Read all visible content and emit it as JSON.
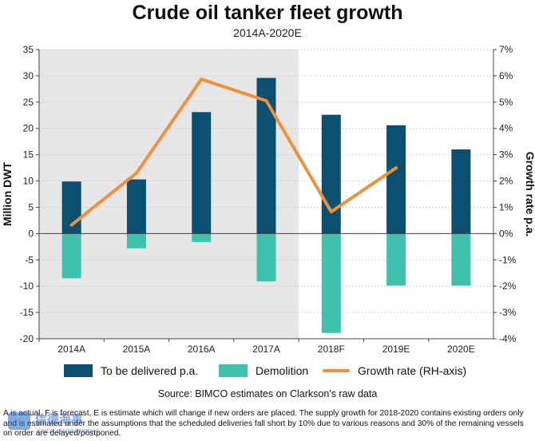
{
  "header": {
    "title": "Crude oil tanker fleet growth",
    "subtitle": "2014A-2020E"
  },
  "chart_data": {
    "type": "bar",
    "categories": [
      "2014A",
      "2015A",
      "2016A",
      "2017A",
      "2018F",
      "2019E",
      "2020E"
    ],
    "series": [
      {
        "name": "To be delivered p.a.",
        "kind": "bar",
        "axis": "left",
        "color": "#0b4f71",
        "values": [
          9.9,
          10.3,
          23.1,
          29.6,
          22.6,
          20.6,
          16.0
        ]
      },
      {
        "name": "Demolition",
        "kind": "bar",
        "axis": "left",
        "color": "#3fc2ad",
        "values": [
          -8.5,
          -2.8,
          -1.6,
          -9.1,
          -18.9,
          -9.9,
          -9.9
        ]
      },
      {
        "name": "Growth rate (RH-axis)",
        "kind": "line",
        "axis": "right",
        "color": "#f0903a",
        "values": [
          0.33,
          2.3,
          5.87,
          5.05,
          0.83,
          2.5,
          null
        ]
      }
    ],
    "ylabel": "Million DWT",
    "ylabel_right": "Growth rate p.a.",
    "ylim": [
      -20,
      35
    ],
    "ylim_right": [
      -4,
      7
    ],
    "yticks": [
      "35",
      "30",
      "25",
      "20",
      "15",
      "10",
      "5",
      "0",
      "-5",
      "-10",
      "-15",
      "-20"
    ],
    "yticks_right": [
      "7%",
      "6%",
      "5%",
      "4%",
      "3%",
      "2%",
      "1%",
      "0%",
      "-1%",
      "-2%",
      "-3%",
      "-4%"
    ],
    "actuals_shaded": [
      "2014A",
      "2015A",
      "2016A",
      "2017A"
    ],
    "shade_color": "#e6e6e6",
    "legend_position": "bottom"
  },
  "legend": {
    "items": [
      {
        "label": "To be delivered p.a.",
        "color": "#0b4f71"
      },
      {
        "label": "Demolition",
        "color": "#3fc2ad"
      },
      {
        "label": "Growth rate (RH-axis)",
        "color": "#f0903a"
      }
    ]
  },
  "source": "Source: BIMCO estimates on Clarkson's raw data",
  "footnote": "A is actual, F is forecast, E is estimate which will change if new orders are placed. The supply growth for 2018-2020 contains existing orders only and is estimated under the assumptions that the scheduled deliveries fall short by 10% due to various reasons and 30% of the remaining vessels on order are delayed/postponed.",
  "watermark": {
    "text": "信德海事",
    "subtext": "XINDE MARINE NEWS",
    "color": "#1e64c8"
  }
}
